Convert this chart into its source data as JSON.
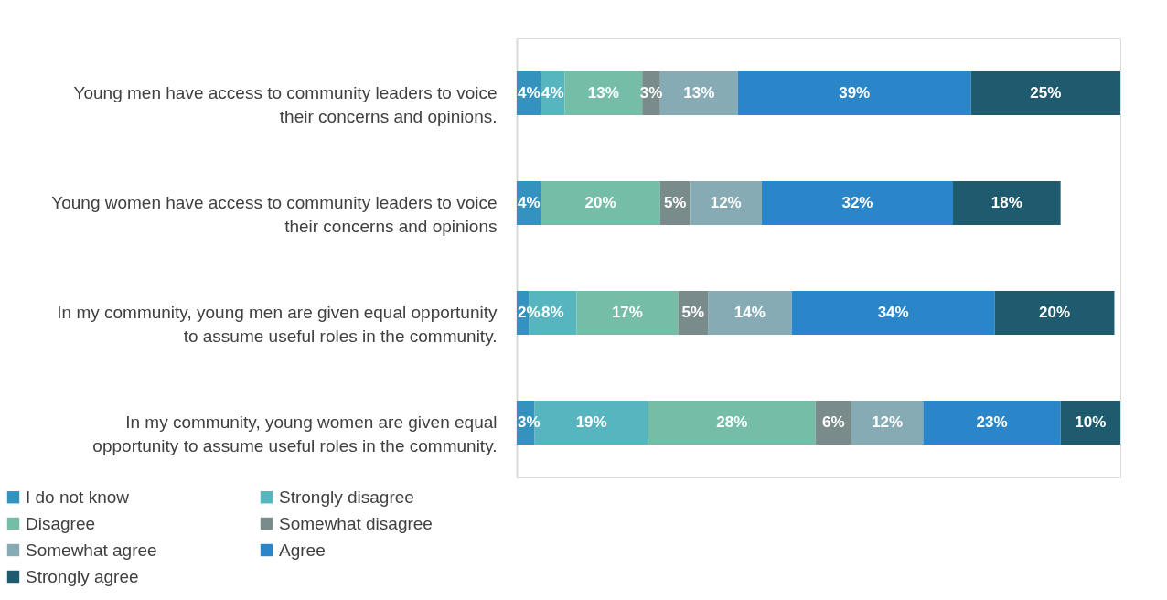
{
  "chart_data": {
    "type": "bar",
    "orientation": "horizontal",
    "stacked": true,
    "tick_labels": "y",
    "legend": "bottom left",
    "categories": [
      "Young men have access to community leaders to voice their concerns and opinions.",
      "Young women have access to community leaders to voice their concerns and opinions",
      "In my community, young men are given equal opportunity to assume useful roles in the community.",
      "In my community, young women are given equal opportunity to assume useful roles in the community."
    ],
    "series": [
      {
        "name": "I do not know",
        "color": "#3492bf",
        "values": [
          4,
          4,
          2,
          3
        ],
        "value_labels": [
          "4%",
          "4%",
          "2%",
          "3%"
        ]
      },
      {
        "name": "Strongly disagree",
        "color": "#57b5c0",
        "values": [
          4,
          0,
          8,
          19
        ],
        "value_labels": [
          "4%",
          null,
          "8%",
          "19%"
        ]
      },
      {
        "name": "Disagree",
        "color": "#75bda7",
        "values": [
          13,
          20,
          17,
          28
        ],
        "value_labels": [
          "13%",
          "20%",
          "17%",
          "28%"
        ]
      },
      {
        "name": "Somewhat disagree",
        "color": "#7a8b8c",
        "values": [
          3,
          5,
          5,
          6
        ],
        "value_labels": [
          "3%",
          "5%",
          "5%",
          "6%"
        ]
      },
      {
        "name": "Somewhat agree",
        "color": "#86abb4",
        "values": [
          13,
          12,
          14,
          12
        ],
        "value_labels": [
          "13%",
          "12%",
          "14%",
          "12%"
        ]
      },
      {
        "name": "Agree",
        "color": "#2a85c9",
        "values": [
          39,
          32,
          34,
          23
        ],
        "value_labels": [
          "39%",
          "32%",
          "34%",
          "23%"
        ]
      },
      {
        "name": "Strongly agree",
        "color": "#1f5b6e",
        "values": [
          25,
          18,
          20,
          10
        ],
        "value_labels": [
          "25%",
          "18%",
          "20%",
          "10%"
        ]
      }
    ]
  }
}
